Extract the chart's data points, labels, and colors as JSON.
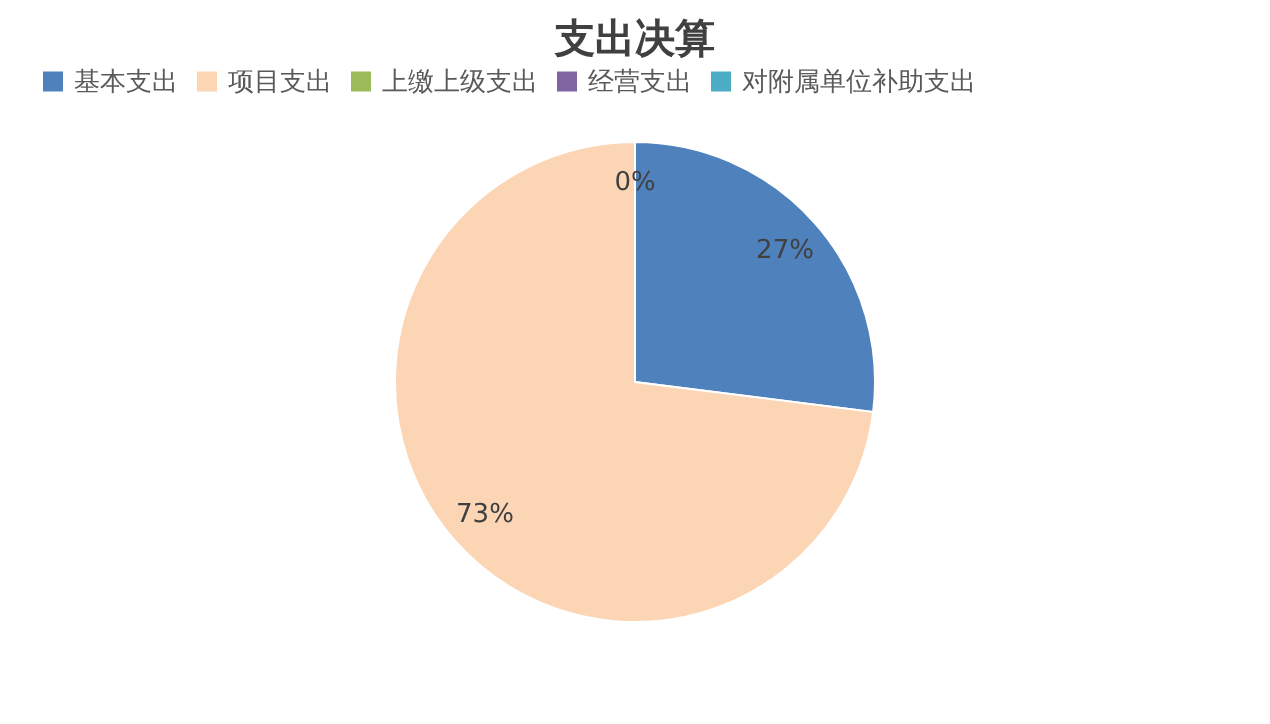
{
  "chart_data": {
    "type": "pie",
    "title": "支出决算",
    "categories": [
      "基本支出",
      "项目支出",
      "上缴上级支出",
      "经营支出",
      "对附属单位补助支出"
    ],
    "values": [
      27,
      73,
      0,
      0,
      0
    ],
    "colors": [
      "#4f81bd",
      "#fcd5b5",
      "#9bbb59",
      "#8064a2",
      "#4bacc6"
    ],
    "value_labels": [
      "27%",
      "73%",
      "0%",
      null,
      null
    ],
    "legend": "top"
  }
}
